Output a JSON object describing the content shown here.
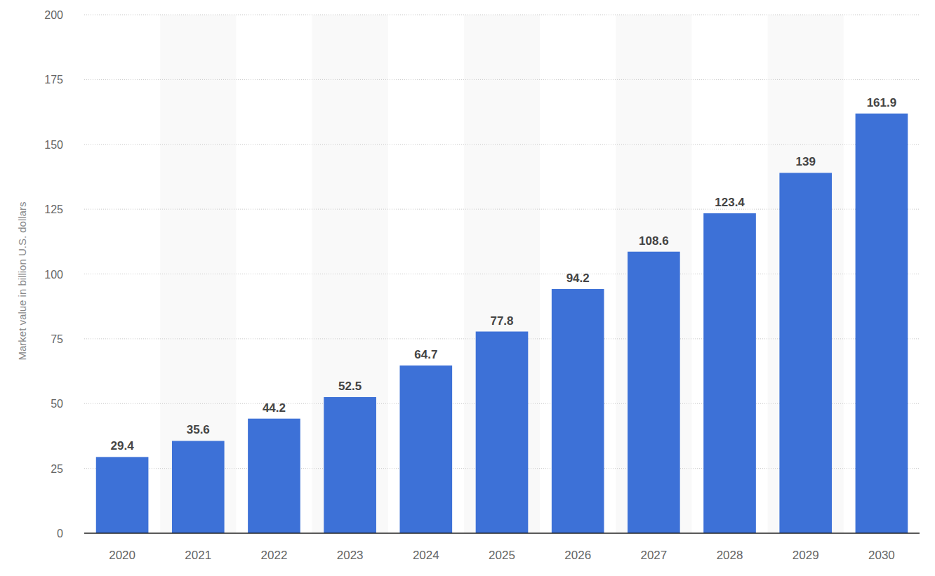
{
  "chart_data": {
    "type": "bar",
    "y_label": "Market value in billion U.S. dollars",
    "categories": [
      "2020",
      "2021",
      "2022",
      "2023",
      "2024",
      "2025",
      "2026",
      "2027",
      "2028",
      "2029",
      "2030"
    ],
    "values": [
      29.4,
      35.6,
      44.2,
      52.5,
      64.7,
      77.8,
      94.2,
      108.6,
      123.4,
      139,
      161.9
    ],
    "color": "#3d71d7",
    "ylim": [
      0,
      200
    ],
    "yticks": [
      0,
      25,
      50,
      75,
      100,
      125,
      150,
      175,
      200
    ],
    "grid": true,
    "data_labels": true
  }
}
